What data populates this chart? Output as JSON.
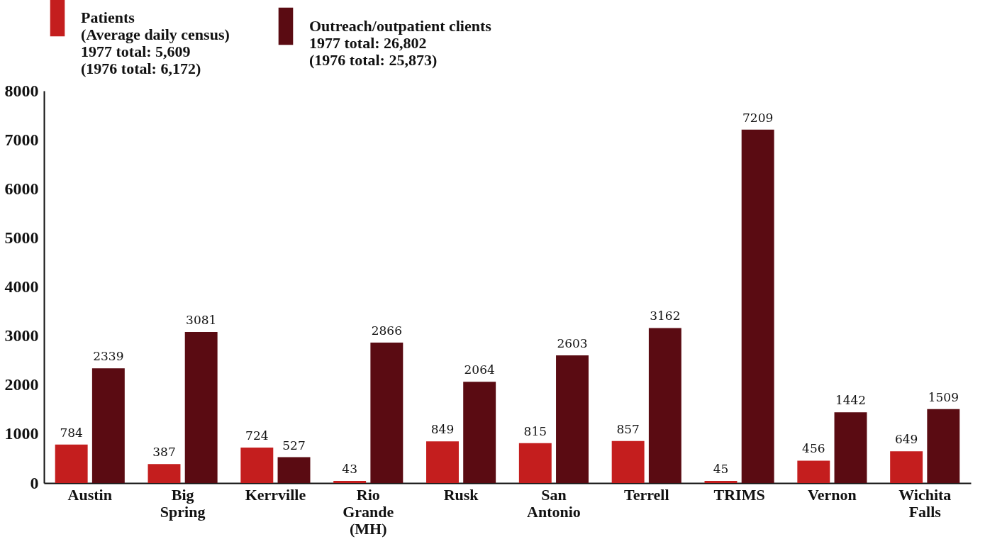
{
  "chart_data": {
    "type": "bar",
    "categories": [
      "Austin",
      "Big Spring",
      "Kerrville",
      "Rio Grande (MH)",
      "Rusk",
      "San Antonio",
      "Terrell",
      "TRIMS",
      "Vernon",
      "Wichita Falls"
    ],
    "series": [
      {
        "name": "Patients\n(Average daily census)\n1977 total: 5,609\n(1976 total: 6,172)",
        "color": "#c41e1e",
        "values": [
          784,
          387,
          724,
          43,
          849,
          815,
          857,
          45,
          456,
          649
        ]
      },
      {
        "name": "Outreach/outpatient clients\n1977 total: 26,802\n(1976 total: 25,873)",
        "color": "#5a0b12",
        "values": [
          2339,
          3081,
          527,
          2866,
          2064,
          2603,
          3162,
          7209,
          1442,
          1509
        ]
      }
    ],
    "ylim": [
      0,
      8000
    ],
    "yticks": [
      0,
      1000,
      2000,
      3000,
      4000,
      5000,
      6000,
      7000,
      8000
    ],
    "grid": false,
    "legend": "top left",
    "data_labels": true
  }
}
